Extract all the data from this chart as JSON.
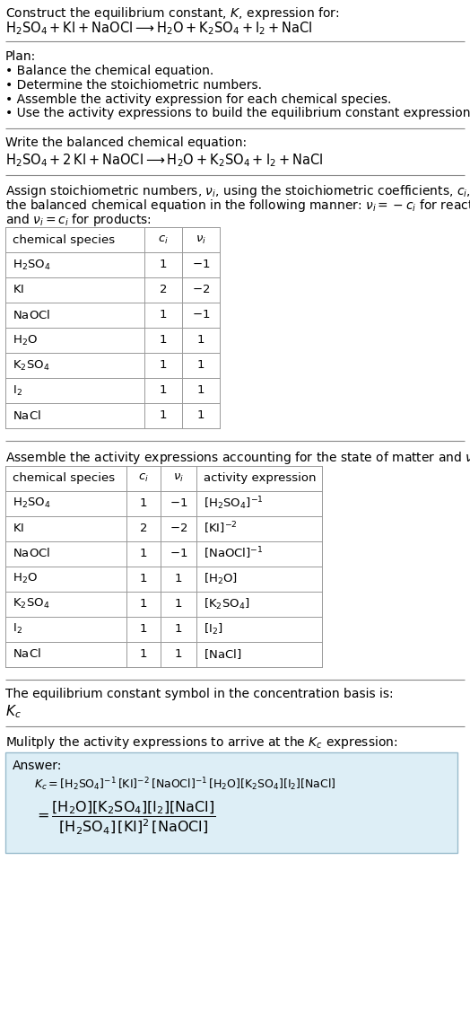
{
  "title_line1": "Construct the equilibrium constant, $K$, expression for:",
  "title_line2": "$\\mathrm{H_2SO_4 + KI + NaOCl} \\longrightarrow \\mathrm{H_2O + K_2SO_4 + I_2 + NaCl}$",
  "plan_header": "Plan:",
  "plan_items": [
    "Balance the chemical equation.",
    "Determine the stoichiometric numbers.",
    "Assemble the activity expression for each chemical species.",
    "Use the activity expressions to build the equilibrium constant expression."
  ],
  "balanced_header": "Write the balanced chemical equation:",
  "balanced_eq": "$\\mathrm{H_2SO_4 + 2\\,KI + NaOCl} \\longrightarrow \\mathrm{H_2O + K_2SO_4 + I_2 + NaCl}$",
  "stoich_intro1": "Assign stoichiometric numbers, $\\nu_i$, using the stoichiometric coefficients, $c_i$, from",
  "stoich_intro2": "the balanced chemical equation in the following manner: $\\nu_i = -c_i$ for reactants",
  "stoich_intro3": "and $\\nu_i = c_i$ for products:",
  "table1_headers": [
    "chemical species",
    "$c_i$",
    "$\\nu_i$"
  ],
  "table1_rows": [
    [
      "$\\mathrm{H_2SO_4}$",
      "1",
      "$-1$"
    ],
    [
      "$\\mathrm{KI}$",
      "2",
      "$-2$"
    ],
    [
      "$\\mathrm{NaOCl}$",
      "1",
      "$-1$"
    ],
    [
      "$\\mathrm{H_2O}$",
      "1",
      "1"
    ],
    [
      "$\\mathrm{K_2SO_4}$",
      "1",
      "1"
    ],
    [
      "$\\mathrm{I_2}$",
      "1",
      "1"
    ],
    [
      "$\\mathrm{NaCl}$",
      "1",
      "1"
    ]
  ],
  "assemble_intro": "Assemble the activity expressions accounting for the state of matter and $\\nu_i$:",
  "table2_headers": [
    "chemical species",
    "$c_i$",
    "$\\nu_i$",
    "activity expression"
  ],
  "table2_rows": [
    [
      "$\\mathrm{H_2SO_4}$",
      "1",
      "$-1$",
      "$[\\mathrm{H_2SO_4}]^{-1}$"
    ],
    [
      "$\\mathrm{KI}$",
      "2",
      "$-2$",
      "$[\\mathrm{KI}]^{-2}$"
    ],
    [
      "$\\mathrm{NaOCl}$",
      "1",
      "$-1$",
      "$[\\mathrm{NaOCl}]^{-1}$"
    ],
    [
      "$\\mathrm{H_2O}$",
      "1",
      "1",
      "$[\\mathrm{H_2O}]$"
    ],
    [
      "$\\mathrm{K_2SO_4}$",
      "1",
      "1",
      "$[\\mathrm{K_2SO_4}]$"
    ],
    [
      "$\\mathrm{I_2}$",
      "1",
      "1",
      "$[\\mathrm{I_2}]$"
    ],
    [
      "$\\mathrm{NaCl}$",
      "1",
      "1",
      "$[\\mathrm{NaCl}]$"
    ]
  ],
  "kc_intro": "The equilibrium constant symbol in the concentration basis is:",
  "kc_symbol": "$K_c$",
  "multiply_intro": "Mulitply the activity expressions to arrive at the $K_c$ expression:",
  "answer_label": "Answer:",
  "answer_line1": "$K_c = [\\mathrm{H_2SO_4}]^{-1}\\,[\\mathrm{KI}]^{-2}\\,[\\mathrm{NaOCl}]^{-1}\\,[\\mathrm{H_2O}][\\mathrm{K_2SO_4}][\\mathrm{I_2}][\\mathrm{NaCl}]$",
  "answer_eq_lhs": "$= \\dfrac{[\\mathrm{H_2O}][\\mathrm{K_2SO_4}][\\mathrm{I_2}][\\mathrm{NaCl}]}{[\\mathrm{H_2SO_4}]\\,[\\mathrm{KI}]^2\\,[\\mathrm{NaOCl}]}$",
  "bg_color": "#ffffff",
  "text_color": "#000000",
  "table_line_color": "#999999",
  "answer_box_bg": "#ddeef6",
  "answer_box_border": "#99bbcc",
  "sep_line_color": "#888888"
}
